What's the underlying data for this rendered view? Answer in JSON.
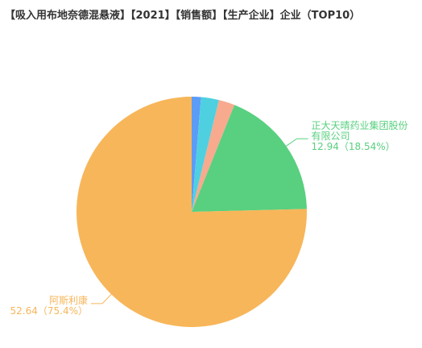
{
  "chart_data": {
    "type": "pie",
    "title": "【吸入用布地奈德混悬液】【2021】【销售额】【生产企业】企业（TOP10）",
    "categories": [
      null,
      null,
      null,
      "正大天晴药业集团股份有限公司",
      "阿斯利康"
    ],
    "values": [
      0.91,
      1.75,
      1.57,
      12.94,
      52.64
    ],
    "value_labels": [
      null,
      null,
      null,
      "12.94（18.54%）",
      "52.64（75.4%）"
    ],
    "colors": [
      "#5b9cf7",
      "#4fd0e0",
      "#f7aa8e",
      "#58d07f",
      "#f7b65a"
    ]
  }
}
